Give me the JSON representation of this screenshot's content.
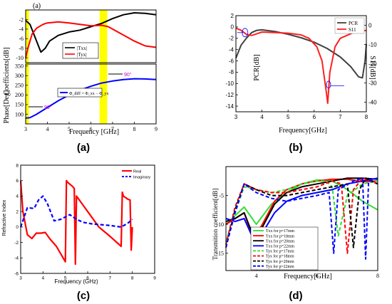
{
  "chart_data": [
    {
      "id": "a",
      "caption": "(a)",
      "type": "line",
      "xlabel": "Frequency [GHz]",
      "xlim": [
        3,
        9
      ],
      "xticks": [
        "3",
        "4",
        "5",
        "6",
        "7",
        "8",
        "9"
      ],
      "highlight_bands": [
        [
          3.0,
          3.15
        ],
        [
          6.4,
          6.75
        ]
      ],
      "highlight_color": "#ffff00",
      "top_panel": {
        "ylabel": "Coefficients[dB]",
        "ylim": [
          -11,
          0
        ],
        "yticks": [
          "-10",
          "-8",
          "-6",
          "-4",
          "-2"
        ],
        "legend_position": "center-left",
        "series": [
          {
            "name": "|Txx|",
            "color": "#000000",
            "x": [
              3.0,
              3.2,
              3.5,
              3.7,
              3.9,
              4.1,
              4.5,
              5.0,
              5.5,
              6.0,
              6.5,
              7.0,
              7.5,
              8.0,
              8.5,
              9.0
            ],
            "values": [
              -2.2,
              -3.0,
              -6.5,
              -8.8,
              -8.0,
              -6.5,
              -5.3,
              -4.6,
              -4.2,
              -3.5,
              -2.8,
              -1.8,
              -1.0,
              -0.6,
              -0.7,
              -1.0
            ]
          },
          {
            "name": "|Tyx|",
            "color": "#ff0000",
            "x": [
              3.0,
              3.1,
              3.3,
              3.5,
              3.8,
              4.0,
              4.5,
              5.0,
              5.5,
              6.0,
              6.5,
              6.8,
              7.2,
              7.6,
              8.0,
              8.5,
              9.0
            ],
            "values": [
              -10.0,
              -8.0,
              -5.0,
              -3.8,
              -3.0,
              -2.7,
              -2.5,
              -2.7,
              -3.0,
              -3.3,
              -3.2,
              -3.5,
              -4.5,
              -5.5,
              -6.5,
              -7.5,
              -7.8
            ]
          }
        ]
      },
      "bottom_panel": {
        "ylabel": "Phase[Deg]",
        "ylim": [
          50,
          360
        ],
        "yticks": [
          "100",
          "150",
          "200",
          "250",
          "300",
          "350"
        ],
        "series": [
          {
            "name": "Φ_diff = Φ_xx − Φ_yx",
            "color": "#0000ff",
            "x": [
              3.0,
              3.2,
              3.5,
              4.0,
              4.5,
              5.0,
              5.5,
              6.0,
              6.5,
              7.0,
              7.5,
              8.0,
              8.5,
              9.0
            ],
            "values": [
              80,
              82,
              100,
              135,
              170,
              200,
              225,
              245,
              262,
              272,
              280,
              284,
              283,
              280
            ]
          }
        ],
        "annotations": [
          "90°",
          "90°"
        ]
      }
    },
    {
      "id": "b",
      "caption": "(b)",
      "type": "line",
      "xlabel": "Frequency[GHz]",
      "xlim": [
        3,
        8
      ],
      "xticks": [
        "3",
        "4",
        "5",
        "6",
        "7",
        "8"
      ],
      "ylabel_left": "PCR[dB]",
      "ylim_left": [
        -15,
        2
      ],
      "yticks_left": [
        "2",
        "0",
        "-2",
        "-4",
        "-6",
        "-8",
        "-10",
        "-12",
        "-14"
      ],
      "ylabel_right": "S11[dB]",
      "yticks_right": [
        "0",
        "-10",
        "-20",
        "-30",
        "-40"
      ],
      "legend_position": "top-right",
      "series": [
        {
          "name": "PCR",
          "color": "#404040",
          "axis": "left",
          "x": [
            3.0,
            3.2,
            3.4,
            3.6,
            3.8,
            4.0,
            4.5,
            5.0,
            5.5,
            6.0,
            6.5,
            7.0,
            7.4,
            7.7,
            7.85,
            7.95,
            8.0
          ],
          "values": [
            -5.5,
            -3.2,
            -2.0,
            -1.0,
            -0.6,
            -0.5,
            -0.8,
            -1.3,
            -1.9,
            -2.7,
            -3.8,
            -5.3,
            -7.0,
            -8.8,
            -9.0,
            -6.0,
            -3.0
          ]
        },
        {
          "name": "S11",
          "color": "#ff2020",
          "axis": "left",
          "x": [
            3.0,
            3.2,
            3.4,
            3.6,
            3.8,
            4.0,
            4.5,
            5.0,
            5.5,
            5.8,
            6.1,
            6.3,
            6.45,
            6.52,
            6.6,
            6.8,
            7.0,
            7.5,
            8.0
          ],
          "values": [
            -0.2,
            -0.6,
            -1.3,
            -1.5,
            -1.2,
            -0.9,
            -1.0,
            -1.1,
            -1.4,
            -2.0,
            -3.5,
            -6.0,
            -11.0,
            -13.5,
            -8.0,
            -3.5,
            -2.0,
            -1.0,
            -0.6
          ]
        }
      ]
    },
    {
      "id": "c",
      "caption": "(c)",
      "type": "line",
      "xlabel": "Frequency (GHz)",
      "ylabel": "Refractive Index",
      "xlim": [
        3,
        9
      ],
      "xticks": [
        "3",
        "4",
        "5",
        "6",
        "7",
        "8",
        "9"
      ],
      "ylim": [
        -6,
        8
      ],
      "yticks": [
        "-6",
        "-4",
        "-2",
        "0",
        "2",
        "4",
        "6",
        "8"
      ],
      "legend_position": "top-right",
      "series": [
        {
          "name": "Real",
          "color": "#ff0000",
          "style": "solid",
          "x": [
            3.0,
            3.1,
            3.3,
            3.5,
            3.7,
            3.9,
            4.1,
            4.3,
            4.6,
            5.0,
            5.05,
            5.1,
            5.3,
            5.4,
            5.45,
            5.5,
            6.0,
            6.5,
            7.0,
            7.5,
            7.55,
            7.6,
            7.8,
            7.9,
            7.95,
            8.0
          ],
          "values": [
            6.0,
            2.0,
            -1.0,
            -1.5,
            -0.8,
            -0.8,
            -0.7,
            -1.5,
            -2.5,
            -4.5,
            6.0,
            5.8,
            5.3,
            5.0,
            -4.8,
            4.0,
            2.0,
            0.0,
            -1.2,
            -2.5,
            4.5,
            4.0,
            3.6,
            3.5,
            -3.0,
            0.0
          ]
        },
        {
          "name": "Imaginary",
          "color": "#0000ff",
          "style": "dashed",
          "x": [
            3.0,
            3.3,
            3.6,
            3.8,
            4.0,
            4.2,
            4.5,
            4.8,
            5.0,
            5.2,
            5.5,
            5.8,
            6.2,
            6.6,
            7.0,
            7.5,
            7.8,
            8.0
          ],
          "values": [
            0.0,
            2.5,
            2.4,
            3.5,
            4.0,
            3.0,
            0.8,
            1.0,
            1.3,
            1.6,
            1.0,
            0.6,
            0.4,
            0.3,
            0.2,
            0.0,
            0.5,
            1.0
          ]
        }
      ]
    },
    {
      "id": "d",
      "caption": "(d)",
      "type": "line",
      "xlabel": "Frequency[GHz]",
      "ylabel": "Transmition coefficient[dB]",
      "xlim": [
        3,
        8
      ],
      "xticks": [
        "4",
        "6",
        "8"
      ],
      "ylim": [
        -18,
        0
      ],
      "yticks": [
        "-5",
        "-10",
        "-15"
      ],
      "legend_position": "bottom-center",
      "series": [
        {
          "name": "Txx   for p=17mm",
          "color": "#33dd33",
          "style": "solid",
          "x": [
            3.0,
            3.3,
            3.6,
            3.8,
            4.0,
            4.5,
            5.0,
            5.5,
            6.0,
            6.5,
            7.0,
            7.5,
            8.0
          ],
          "values": [
            -10.0,
            -8.5,
            -7.0,
            -8.5,
            -10.0,
            -6.5,
            -4.5,
            -3.0,
            -2.3,
            -2.5,
            -4.0,
            -6.0,
            -7.5
          ]
        },
        {
          "name": "Txx   for p=18mm",
          "color": "#ff0000",
          "style": "solid",
          "x": [
            3.0,
            3.3,
            3.6,
            3.9,
            4.2,
            4.6,
            5.0,
            5.5,
            6.0,
            6.5,
            7.0,
            7.5,
            8.0
          ],
          "values": [
            -10.0,
            -9.0,
            -8.0,
            -12.5,
            -10.0,
            -6.0,
            -4.0,
            -3.0,
            -2.5,
            -2.2,
            -2.2,
            -2.6,
            -2.5
          ]
        },
        {
          "name": "Txx   for p=20mm",
          "color": "#000000",
          "style": "solid",
          "x": [
            3.0,
            3.3,
            3.6,
            3.9,
            4.2,
            4.6,
            5.0,
            5.5,
            6.0,
            6.5,
            7.0,
            7.5,
            8.0
          ],
          "values": [
            -9.5,
            -9.0,
            -8.0,
            -12.0,
            -10.5,
            -6.5,
            -4.5,
            -3.5,
            -3.0,
            -2.5,
            -2.0,
            -2.0,
            -2.2
          ]
        },
        {
          "name": "Txx   for p=22mm",
          "color": "#0000ff",
          "style": "solid",
          "x": [
            3.0,
            3.3,
            3.6,
            3.9,
            4.2,
            4.6,
            5.0,
            5.5,
            6.0,
            6.5,
            7.0,
            7.5,
            8.0
          ],
          "values": [
            -9.0,
            -9.5,
            -9.0,
            -12.5,
            -11.5,
            -8.0,
            -6.0,
            -5.0,
            -4.5,
            -4.0,
            -3.0,
            -2.5,
            -2.0
          ]
        },
        {
          "name": "Tyx   for p=17mm",
          "color": "#33dd33",
          "style": "dashed",
          "x": [
            3.0,
            3.3,
            3.6,
            4.0,
            4.5,
            5.0,
            5.5,
            6.0,
            6.3,
            6.5,
            6.7,
            7.0,
            7.5,
            8.0
          ],
          "values": [
            -13.0,
            -8.0,
            -3.5,
            -4.0,
            -4.5,
            -4.0,
            -3.0,
            -2.5,
            -2.5,
            -3.5,
            -12.0,
            -5.0,
            -3.0,
            -2.5
          ]
        },
        {
          "name": "Tyx   for p=18mm",
          "color": "#ff0000",
          "style": "dashed",
          "x": [
            3.0,
            3.3,
            3.6,
            4.0,
            4.5,
            5.0,
            5.5,
            6.0,
            6.5,
            6.8,
            7.0,
            7.2,
            7.5,
            8.0
          ],
          "values": [
            -13.5,
            -7.0,
            -3.0,
            -4.0,
            -4.5,
            -4.5,
            -4.0,
            -3.5,
            -2.5,
            -3.0,
            -15.0,
            -4.0,
            -2.0,
            -3.0
          ]
        },
        {
          "name": "Tyx   for p=20mm",
          "color": "#000000",
          "style": "dashed",
          "x": [
            3.0,
            3.3,
            3.6,
            4.0,
            4.5,
            5.0,
            5.5,
            6.0,
            6.5,
            7.0,
            7.2,
            7.4,
            7.6,
            8.0
          ],
          "values": [
            -14.0,
            -7.5,
            -3.0,
            -4.0,
            -5.0,
            -5.0,
            -4.5,
            -4.0,
            -3.5,
            -3.0,
            -14.0,
            -4.0,
            -2.0,
            -3.0
          ]
        },
        {
          "name": "Tyx   for p=22mm",
          "color": "#0000ff",
          "style": "dashed",
          "x": [
            3.0,
            3.3,
            3.6,
            4.0,
            4.5,
            5.0,
            5.5,
            6.0,
            6.4,
            6.55,
            6.7,
            7.2,
            7.5,
            7.6,
            7.7,
            8.0
          ],
          "values": [
            -14.0,
            -8.0,
            -3.0,
            -4.5,
            -5.5,
            -6.0,
            -5.5,
            -5.0,
            -4.5,
            -15.0,
            -4.0,
            -2.5,
            -2.0,
            -16.0,
            -2.5,
            -2.0
          ]
        }
      ]
    }
  ]
}
